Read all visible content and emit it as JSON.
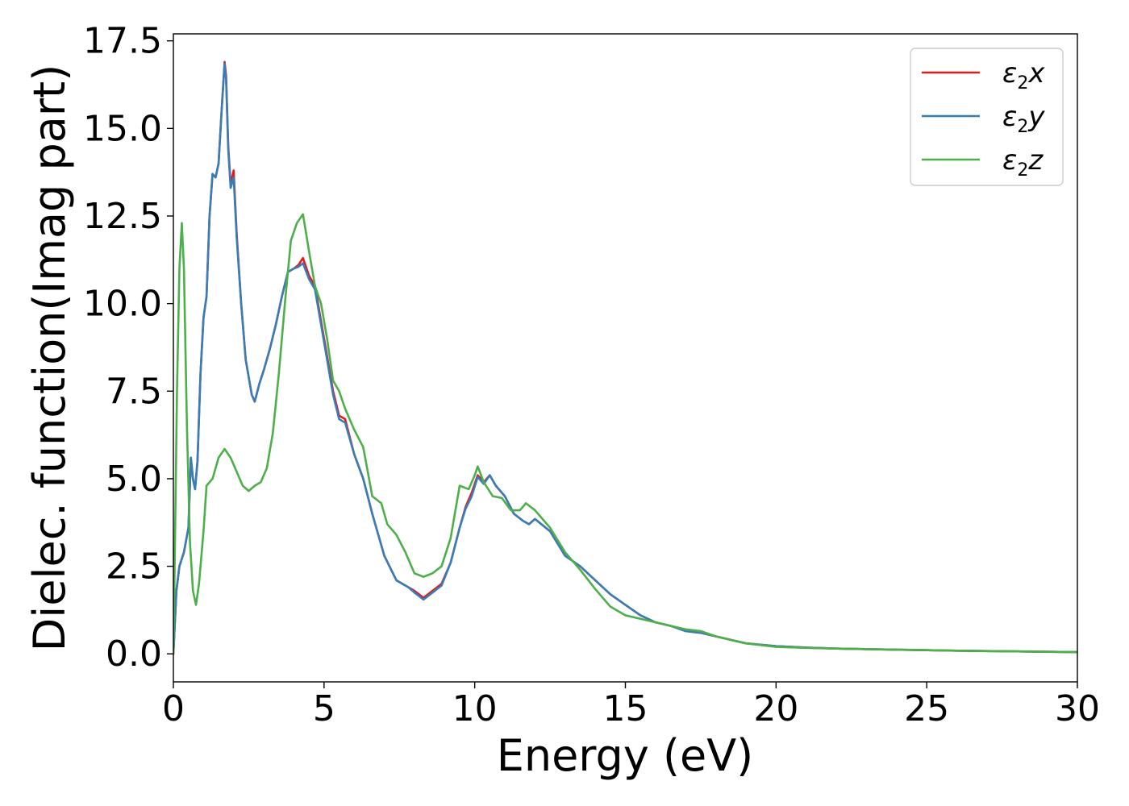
{
  "chart_data": {
    "type": "line",
    "title": "",
    "xlabel": "Energy (eV)",
    "ylabel": "Dielec. function(Imag part)",
    "xlim": [
      0,
      30
    ],
    "ylim": [
      -0.8,
      17.7
    ],
    "x_ticks": [
      0,
      5,
      10,
      15,
      20,
      25,
      30
    ],
    "x_tick_labels": [
      "0",
      "5",
      "10",
      "15",
      "20",
      "25",
      "30"
    ],
    "y_ticks": [
      0.0,
      2.5,
      5.0,
      7.5,
      10.0,
      12.5,
      15.0,
      17.5
    ],
    "y_tick_labels": [
      "0.0",
      "2.5",
      "5.0",
      "7.5",
      "10.0",
      "12.5",
      "15.0",
      "17.5"
    ],
    "grid": false,
    "legend_position": "top-right",
    "series": [
      {
        "name": "ε2x",
        "symbol": "ε",
        "subscript": "2",
        "suffix": "x",
        "color": "#e41a1c",
        "points": [
          [
            0,
            0
          ],
          [
            0.1,
            1.8
          ],
          [
            0.2,
            2.5
          ],
          [
            0.35,
            2.9
          ],
          [
            0.5,
            3.6
          ],
          [
            0.58,
            5.6
          ],
          [
            0.65,
            5.0
          ],
          [
            0.72,
            4.7
          ],
          [
            0.8,
            5.5
          ],
          [
            0.9,
            8.0
          ],
          [
            1.0,
            9.6
          ],
          [
            1.1,
            10.2
          ],
          [
            1.2,
            12.5
          ],
          [
            1.3,
            13.7
          ],
          [
            1.4,
            13.6
          ],
          [
            1.5,
            14.0
          ],
          [
            1.6,
            15.5
          ],
          [
            1.7,
            16.9
          ],
          [
            1.75,
            16.5
          ],
          [
            1.82,
            14.5
          ],
          [
            1.9,
            13.4
          ],
          [
            2.0,
            13.8
          ],
          [
            2.1,
            12.0
          ],
          [
            2.25,
            10.0
          ],
          [
            2.4,
            8.4
          ],
          [
            2.6,
            7.4
          ],
          [
            2.7,
            7.2
          ],
          [
            2.85,
            7.7
          ],
          [
            3.0,
            8.1
          ],
          [
            3.2,
            8.7
          ],
          [
            3.4,
            9.4
          ],
          [
            3.6,
            10.2
          ],
          [
            3.8,
            10.9
          ],
          [
            4.0,
            11.0
          ],
          [
            4.15,
            11.1
          ],
          [
            4.3,
            11.3
          ],
          [
            4.5,
            10.8
          ],
          [
            4.7,
            10.5
          ],
          [
            4.9,
            9.5
          ],
          [
            5.1,
            8.5
          ],
          [
            5.3,
            7.5
          ],
          [
            5.5,
            6.8
          ],
          [
            5.7,
            6.7
          ],
          [
            6.0,
            5.7
          ],
          [
            6.3,
            5.0
          ],
          [
            6.6,
            4.0
          ],
          [
            7.0,
            2.8
          ],
          [
            7.4,
            2.1
          ],
          [
            7.8,
            1.9
          ],
          [
            8.0,
            1.8
          ],
          [
            8.3,
            1.6
          ],
          [
            8.6,
            1.8
          ],
          [
            8.9,
            2.0
          ],
          [
            9.2,
            2.6
          ],
          [
            9.5,
            3.6
          ],
          [
            9.7,
            4.2
          ],
          [
            9.9,
            4.6
          ],
          [
            10.1,
            5.1
          ],
          [
            10.3,
            4.9
          ],
          [
            10.5,
            5.1
          ],
          [
            10.7,
            4.8
          ],
          [
            11.0,
            4.5
          ],
          [
            11.3,
            4.0
          ],
          [
            11.6,
            3.8
          ],
          [
            11.8,
            3.7
          ],
          [
            12.0,
            3.85
          ],
          [
            12.5,
            3.5
          ],
          [
            13.0,
            2.8
          ],
          [
            13.5,
            2.5
          ],
          [
            14.0,
            2.1
          ],
          [
            14.5,
            1.7
          ],
          [
            15.0,
            1.4
          ],
          [
            15.5,
            1.1
          ],
          [
            16.0,
            0.9
          ],
          [
            16.5,
            0.8
          ],
          [
            17.0,
            0.65
          ],
          [
            17.5,
            0.6
          ],
          [
            18.0,
            0.5
          ],
          [
            18.5,
            0.4
          ],
          [
            19.0,
            0.3
          ],
          [
            20.0,
            0.22
          ],
          [
            21.0,
            0.18
          ],
          [
            22.0,
            0.15
          ],
          [
            24.0,
            0.12
          ],
          [
            26.0,
            0.09
          ],
          [
            28.0,
            0.07
          ],
          [
            30.0,
            0.05
          ]
        ]
      },
      {
        "name": "ε2y",
        "symbol": "ε",
        "subscript": "2",
        "suffix": "y",
        "color": "#377eb8",
        "points": [
          [
            0,
            0
          ],
          [
            0.1,
            1.8
          ],
          [
            0.2,
            2.5
          ],
          [
            0.35,
            2.9
          ],
          [
            0.5,
            3.6
          ],
          [
            0.58,
            5.6
          ],
          [
            0.65,
            5.0
          ],
          [
            0.72,
            4.7
          ],
          [
            0.8,
            5.5
          ],
          [
            0.9,
            8.0
          ],
          [
            1.0,
            9.6
          ],
          [
            1.1,
            10.2
          ],
          [
            1.2,
            12.5
          ],
          [
            1.3,
            13.7
          ],
          [
            1.4,
            13.6
          ],
          [
            1.5,
            14.0
          ],
          [
            1.6,
            15.5
          ],
          [
            1.7,
            16.85
          ],
          [
            1.75,
            16.4
          ],
          [
            1.82,
            14.4
          ],
          [
            1.9,
            13.3
          ],
          [
            2.0,
            13.6
          ],
          [
            2.1,
            11.9
          ],
          [
            2.25,
            10.0
          ],
          [
            2.4,
            8.4
          ],
          [
            2.6,
            7.4
          ],
          [
            2.7,
            7.2
          ],
          [
            2.85,
            7.7
          ],
          [
            3.0,
            8.1
          ],
          [
            3.2,
            8.7
          ],
          [
            3.4,
            9.4
          ],
          [
            3.6,
            10.2
          ],
          [
            3.8,
            10.9
          ],
          [
            4.0,
            11.0
          ],
          [
            4.15,
            11.05
          ],
          [
            4.3,
            11.15
          ],
          [
            4.5,
            10.7
          ],
          [
            4.7,
            10.4
          ],
          [
            4.9,
            9.4
          ],
          [
            5.1,
            8.4
          ],
          [
            5.3,
            7.4
          ],
          [
            5.5,
            6.7
          ],
          [
            5.7,
            6.6
          ],
          [
            6.0,
            5.7
          ],
          [
            6.3,
            5.0
          ],
          [
            6.6,
            4.0
          ],
          [
            7.0,
            2.8
          ],
          [
            7.4,
            2.1
          ],
          [
            7.8,
            1.9
          ],
          [
            8.0,
            1.75
          ],
          [
            8.3,
            1.55
          ],
          [
            8.6,
            1.75
          ],
          [
            8.9,
            1.95
          ],
          [
            9.2,
            2.6
          ],
          [
            9.5,
            3.6
          ],
          [
            9.7,
            4.15
          ],
          [
            9.9,
            4.5
          ],
          [
            10.1,
            5.05
          ],
          [
            10.3,
            4.85
          ],
          [
            10.5,
            5.1
          ],
          [
            10.7,
            4.8
          ],
          [
            11.0,
            4.5
          ],
          [
            11.3,
            4.0
          ],
          [
            11.6,
            3.8
          ],
          [
            11.8,
            3.7
          ],
          [
            12.0,
            3.85
          ],
          [
            12.5,
            3.5
          ],
          [
            13.0,
            2.8
          ],
          [
            13.5,
            2.5
          ],
          [
            14.0,
            2.1
          ],
          [
            14.5,
            1.7
          ],
          [
            15.0,
            1.4
          ],
          [
            15.5,
            1.1
          ],
          [
            16.0,
            0.9
          ],
          [
            16.5,
            0.8
          ],
          [
            17.0,
            0.65
          ],
          [
            17.5,
            0.6
          ],
          [
            18.0,
            0.5
          ],
          [
            18.5,
            0.4
          ],
          [
            19.0,
            0.3
          ],
          [
            20.0,
            0.22
          ],
          [
            21.0,
            0.18
          ],
          [
            22.0,
            0.15
          ],
          [
            24.0,
            0.12
          ],
          [
            26.0,
            0.09
          ],
          [
            28.0,
            0.07
          ],
          [
            30.0,
            0.05
          ]
        ]
      },
      {
        "name": "ε2z",
        "symbol": "ε",
        "subscript": "2",
        "suffix": "z",
        "color": "#4daf4a",
        "points": [
          [
            0,
            0
          ],
          [
            0.05,
            3.0
          ],
          [
            0.12,
            7.5
          ],
          [
            0.2,
            11.0
          ],
          [
            0.28,
            12.3
          ],
          [
            0.35,
            11.0
          ],
          [
            0.45,
            6.5
          ],
          [
            0.55,
            3.2
          ],
          [
            0.65,
            1.8
          ],
          [
            0.75,
            1.4
          ],
          [
            0.85,
            2.0
          ],
          [
            1.0,
            3.5
          ],
          [
            1.1,
            4.8
          ],
          [
            1.3,
            5.0
          ],
          [
            1.5,
            5.6
          ],
          [
            1.7,
            5.85
          ],
          [
            1.9,
            5.6
          ],
          [
            2.1,
            5.2
          ],
          [
            2.3,
            4.8
          ],
          [
            2.5,
            4.65
          ],
          [
            2.7,
            4.8
          ],
          [
            2.9,
            4.9
          ],
          [
            3.1,
            5.3
          ],
          [
            3.3,
            6.3
          ],
          [
            3.5,
            8.0
          ],
          [
            3.7,
            10.0
          ],
          [
            3.9,
            11.8
          ],
          [
            4.1,
            12.3
          ],
          [
            4.3,
            12.55
          ],
          [
            4.5,
            11.5
          ],
          [
            4.7,
            10.5
          ],
          [
            4.9,
            10.0
          ],
          [
            5.1,
            9.0
          ],
          [
            5.3,
            7.8
          ],
          [
            5.5,
            7.5
          ],
          [
            5.7,
            7.0
          ],
          [
            6.0,
            6.4
          ],
          [
            6.3,
            5.9
          ],
          [
            6.6,
            4.5
          ],
          [
            6.9,
            4.3
          ],
          [
            7.1,
            3.7
          ],
          [
            7.4,
            3.4
          ],
          [
            7.7,
            2.9
          ],
          [
            8.0,
            2.3
          ],
          [
            8.3,
            2.2
          ],
          [
            8.6,
            2.3
          ],
          [
            8.9,
            2.5
          ],
          [
            9.2,
            3.3
          ],
          [
            9.5,
            4.8
          ],
          [
            9.8,
            4.7
          ],
          [
            10.0,
            5.1
          ],
          [
            10.1,
            5.35
          ],
          [
            10.3,
            4.9
          ],
          [
            10.6,
            4.5
          ],
          [
            10.9,
            4.45
          ],
          [
            11.2,
            4.1
          ],
          [
            11.5,
            4.1
          ],
          [
            11.7,
            4.3
          ],
          [
            12.0,
            4.1
          ],
          [
            12.5,
            3.6
          ],
          [
            13.0,
            2.9
          ],
          [
            13.5,
            2.4
          ],
          [
            14.0,
            1.85
          ],
          [
            14.5,
            1.35
          ],
          [
            15.0,
            1.1
          ],
          [
            15.5,
            1.0
          ],
          [
            16.0,
            0.9
          ],
          [
            16.5,
            0.8
          ],
          [
            17.0,
            0.7
          ],
          [
            17.5,
            0.65
          ],
          [
            18.0,
            0.5
          ],
          [
            18.5,
            0.4
          ],
          [
            19.0,
            0.3
          ],
          [
            20.0,
            0.2
          ],
          [
            21.0,
            0.17
          ],
          [
            22.0,
            0.15
          ],
          [
            24.0,
            0.12
          ],
          [
            26.0,
            0.09
          ],
          [
            28.0,
            0.07
          ],
          [
            30.0,
            0.05
          ]
        ]
      }
    ]
  }
}
